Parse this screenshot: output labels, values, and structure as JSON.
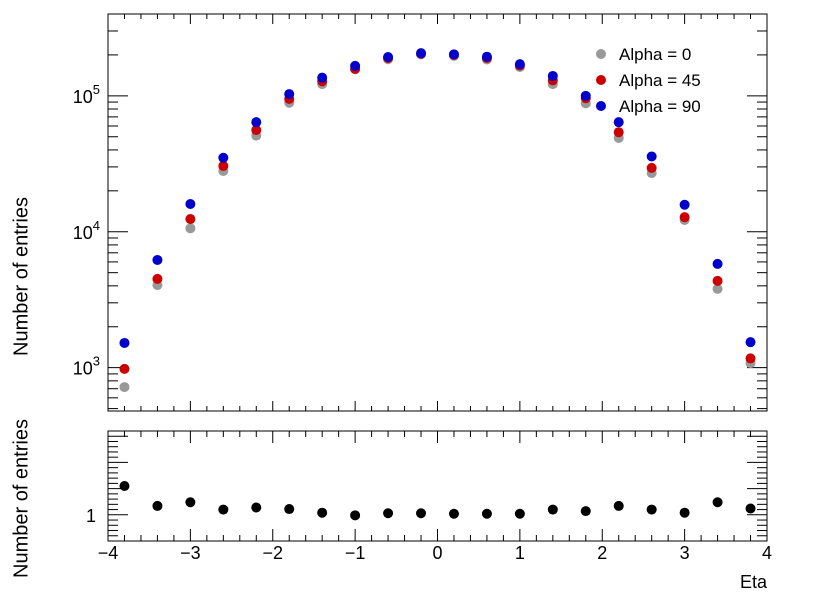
{
  "chart_data": [
    {
      "type": "scatter",
      "panel": "top",
      "ylabel": "Number of entries",
      "yscale": "log",
      "ylim": [
        480,
        400000
      ],
      "xlim": [
        -4,
        4
      ],
      "yticks": [
        {
          "value": 1000,
          "base": "10",
          "exp": "3"
        },
        {
          "value": 10000,
          "base": "10",
          "exp": "4"
        },
        {
          "value": 100000,
          "base": "10",
          "exp": "5"
        }
      ],
      "legend_position": "top-right",
      "x": [
        -3.8,
        -3.4,
        -3.0,
        -2.6,
        -2.2,
        -1.8,
        -1.4,
        -1.0,
        -0.6,
        -0.2,
        0.2,
        0.6,
        1.0,
        1.4,
        1.8,
        2.2,
        2.6,
        3.0,
        3.4,
        3.8
      ],
      "series": [
        {
          "name": "Alpha = 0",
          "color": "#999999",
          "values": [
            720,
            4050,
            10600,
            28000,
            51000,
            89000,
            122000,
            157000,
            186000,
            202000,
            197000,
            185000,
            163000,
            122000,
            88000,
            49000,
            27000,
            12200,
            3800,
            1080
          ]
        },
        {
          "name": "Alpha = 45",
          "color": "#cc0000",
          "values": [
            980,
            4500,
            12400,
            30500,
            56000,
            95000,
            128000,
            158000,
            190000,
            204000,
            200000,
            190000,
            167000,
            130000,
            96000,
            54000,
            29500,
            12800,
            4350,
            1170
          ]
        },
        {
          "name": "Alpha = 90",
          "color": "#0000cc",
          "values": [
            1520,
            6200,
            16000,
            35000,
            64000,
            103000,
            136000,
            166000,
            193000,
            206000,
            202000,
            194000,
            171000,
            140000,
            100000,
            64000,
            35800,
            15800,
            5800,
            1540
          ]
        }
      ]
    },
    {
      "type": "scatter",
      "panel": "bottom",
      "xlabel": "Eta",
      "ylabel": "Number of entries",
      "xlim": [
        -4,
        4
      ],
      "ylim": [
        0.5,
        2.6
      ],
      "xticks": [
        "−4",
        "−3",
        "−2",
        "−1",
        "0",
        "1",
        "2",
        "3",
        "4"
      ],
      "yticks": [
        "1"
      ],
      "x": [
        -3.8,
        -3.4,
        -3.0,
        -2.6,
        -2.2,
        -1.8,
        -1.4,
        -1.0,
        -0.6,
        -0.2,
        0.2,
        0.6,
        1.0,
        1.4,
        1.8,
        2.2,
        2.6,
        3.0,
        3.4,
        3.8
      ],
      "series": [
        {
          "color": "#000000",
          "values": [
            1.55,
            1.17,
            1.24,
            1.1,
            1.14,
            1.11,
            1.04,
            0.99,
            1.03,
            1.03,
            1.02,
            1.02,
            1.02,
            1.1,
            1.07,
            1.17,
            1.1,
            1.04,
            1.24,
            1.12
          ]
        }
      ]
    }
  ]
}
